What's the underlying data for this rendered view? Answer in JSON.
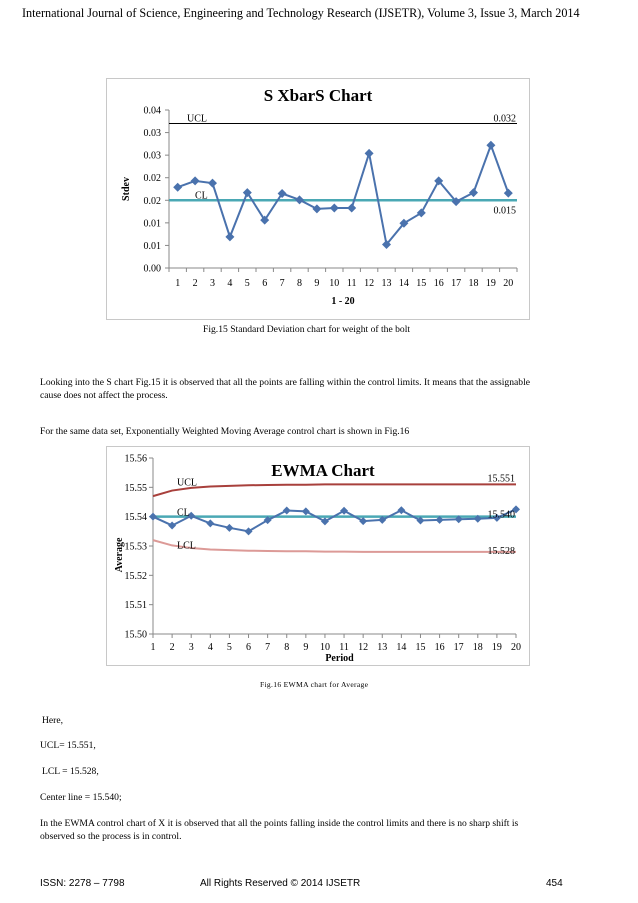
{
  "header": "International Journal of Science, Engineering and Technology Research (IJSETR), Volume 3, Issue 3, March 2014",
  "fig15_caption": "Fig.15  Standard Deviation chart for weight of the bolt",
  "para1_line1": "Looking into the S chart Fig.15 it is observed that all the points are falling within the control limits. It means that the assignable",
  "para1_line2": "cause does not affect the process.",
  "para2": "For the same data set, Exponentially Weighted Moving Average control chart is shown in Fig.16",
  "fig16_caption": "Fig.16  EWMA chart for Average",
  "here": "Here,",
  "ucl_line": "UCL= 15.551,",
  "lcl_line": "LCL = 15.528,",
  "center_line": "Center line = 15.540;",
  "para3_line1": "In the EWMA control chart of X it is observed that all the points falling inside the control limits and there is no sharp shift is",
  "para3_line2": "observed so the process is in control.",
  "footer": {
    "issn": "ISSN: 2278 – 7798",
    "rights": "All Rights Reserved © 2014  IJSETR",
    "page": "454"
  },
  "chart_data": [
    {
      "type": "line",
      "title": "S XbarS Chart",
      "xlabel": "1 - 20",
      "ylabel": "Stdev",
      "x": [
        1,
        2,
        3,
        4,
        5,
        6,
        7,
        8,
        9,
        10,
        11,
        12,
        13,
        14,
        15,
        16,
        17,
        18,
        19,
        20
      ],
      "ylim": [
        0.0,
        0.035
      ],
      "ytick_values": [
        0,
        0.005,
        0.01,
        0.015,
        0.02,
        0.025,
        0.03,
        0.035
      ],
      "ytick_labels": [
        "0.00",
        "0.01",
        "0.01",
        "0.02",
        "0.02",
        "0.03",
        "0.03",
        "0.04"
      ],
      "series": [
        {
          "values": [
            0.0179,
            0.0193,
            0.0188,
            0.0069,
            0.0167,
            0.0106,
            0.0165,
            0.0151,
            0.0131,
            0.0133,
            0.0133,
            0.0254,
            0.0052,
            0.0099,
            0.0122,
            0.0193,
            0.0147,
            0.0167,
            0.0272,
            0.0166
          ],
          "color": "#4a72ad"
        }
      ],
      "ucl": 0.032,
      "cl": 0.015,
      "ucl_label": "UCL",
      "cl_label": "CL",
      "ucl_value_label": "0.032",
      "cl_value_label": "0.015",
      "grid": false
    },
    {
      "type": "line",
      "title": "EWMA Chart",
      "xlabel": "Period",
      "ylabel": "Average",
      "x": [
        1,
        2,
        3,
        4,
        5,
        6,
        7,
        8,
        9,
        10,
        11,
        12,
        13,
        14,
        15,
        16,
        17,
        18,
        19,
        20
      ],
      "ylim": [
        15.5,
        15.56
      ],
      "ytick_values": [
        15.5,
        15.51,
        15.52,
        15.53,
        15.54,
        15.55,
        15.56
      ],
      "ytick_labels": [
        "15.50",
        "15.51",
        "15.52",
        "15.53",
        "15.54",
        "15.55",
        "15.56"
      ],
      "series": [
        {
          "values": [
            15.54,
            15.537,
            15.5403,
            15.5377,
            15.5362,
            15.535,
            15.5388,
            15.5421,
            15.5418,
            15.5384,
            15.542,
            15.5385,
            15.5389,
            15.5422,
            15.5387,
            15.5389,
            15.5391,
            15.5393,
            15.5396,
            15.5425
          ],
          "color": "#4a72ad"
        }
      ],
      "ucl_curve": [
        15.547,
        15.5489,
        15.5498,
        15.5503,
        15.5505,
        15.5507,
        15.5508,
        15.5509,
        15.5509,
        15.551,
        15.551,
        15.551,
        15.551,
        15.551,
        15.551,
        15.551,
        15.551,
        15.551,
        15.551,
        15.551
      ],
      "lcl_curve": [
        15.532,
        15.5302,
        15.5293,
        15.5288,
        15.5286,
        15.5284,
        15.5283,
        15.5282,
        15.5282,
        15.5281,
        15.5281,
        15.528,
        15.528,
        15.528,
        15.528,
        15.528,
        15.528,
        15.528,
        15.528,
        15.528
      ],
      "cl": 15.54,
      "ucl_label": "UCL",
      "cl_label": "CL",
      "lcl_label": "LCL",
      "ucl_value_label": "15.551",
      "cl_value_label": "15.540",
      "lcl_value_label": "15.528",
      "colors": {
        "ucl": "#a8403c",
        "lcl": "#dc9a97",
        "cl": "#4aa8b4"
      },
      "grid": false
    }
  ]
}
